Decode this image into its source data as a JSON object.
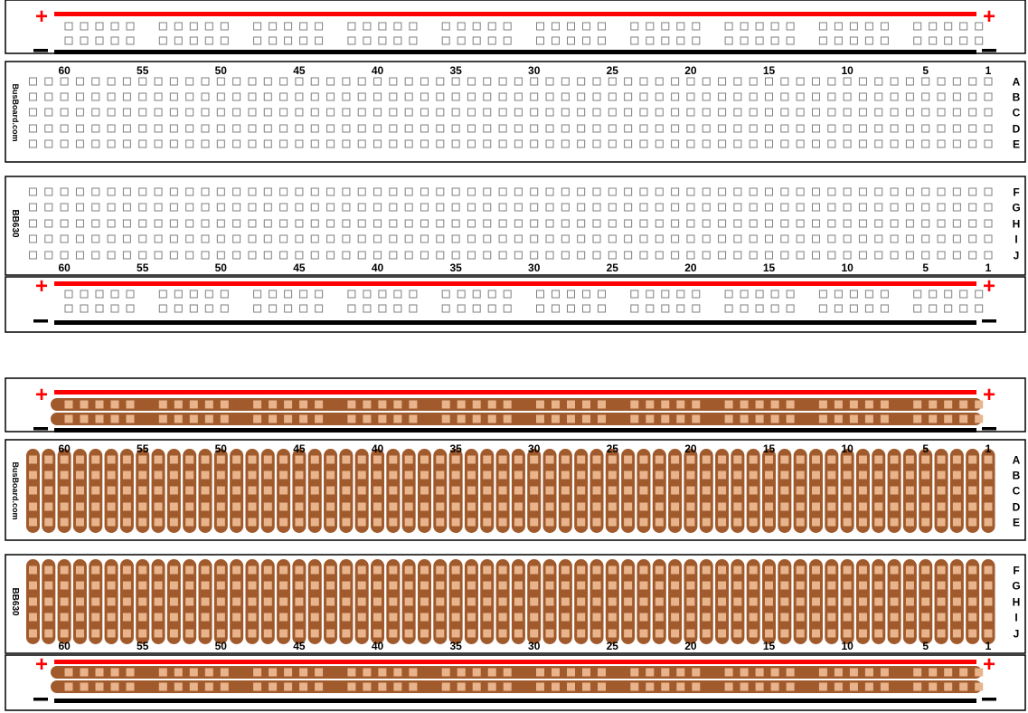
{
  "boards": [
    {
      "id": "board-top",
      "style": "outline",
      "brand_text": "BusBoard.com",
      "model_text": "BB630",
      "rows_top": [
        "A",
        "B",
        "C",
        "D",
        "E"
      ],
      "rows_bottom": [
        "F",
        "G",
        "H",
        "I",
        "J"
      ],
      "column_labels": [
        "60",
        "55",
        "50",
        "45",
        "40",
        "35",
        "30",
        "25",
        "20",
        "15",
        "10",
        "5",
        "1"
      ],
      "plus_symbol": "+",
      "minus_symbol": "—"
    },
    {
      "id": "board-bottom",
      "style": "copper",
      "brand_text": "BusBoard.com",
      "model_text": "BB630",
      "rows_top": [
        "A",
        "B",
        "C",
        "D",
        "E"
      ],
      "rows_bottom": [
        "F",
        "G",
        "H",
        "I",
        "J"
      ],
      "column_labels": [
        "60",
        "55",
        "50",
        "45",
        "40",
        "35",
        "30",
        "25",
        "20",
        "15",
        "10",
        "5",
        "1"
      ],
      "plus_symbol": "+",
      "minus_symbol": "—"
    }
  ],
  "colors": {
    "rail_positive": "#ff0000",
    "rail_negative": "#000000",
    "hole_outline": "#7f7f7f",
    "copper_strip": "#a05a2c",
    "copper_pad": "#e9b48c",
    "border": "#000000"
  }
}
